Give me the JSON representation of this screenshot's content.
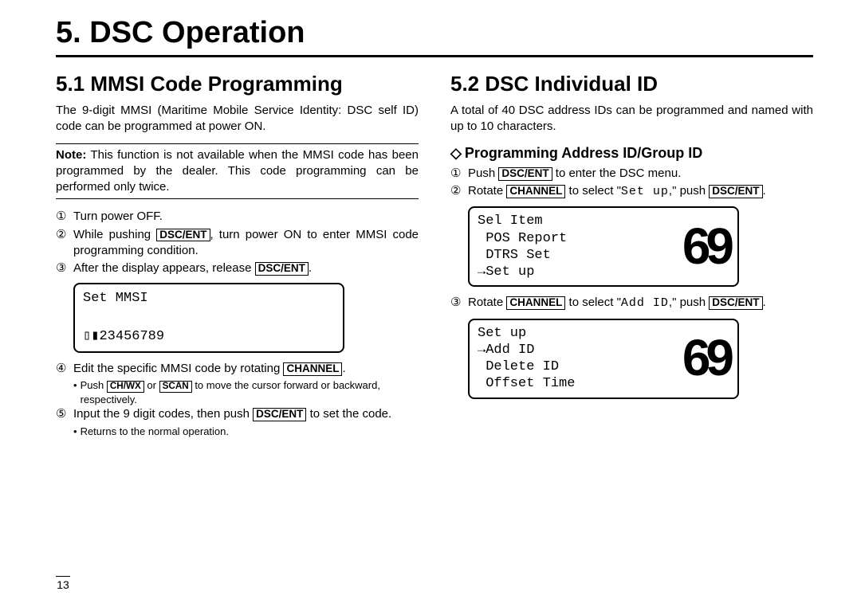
{
  "title": "5. DSC Operation",
  "pageNumber": "13",
  "buttons": {
    "dscEnt": "DSC/ENT",
    "channel": "CHANNEL",
    "chwx": "CH/WX",
    "scan": "SCAN"
  },
  "left": {
    "heading": "5.1 MMSI Code Programming",
    "intro": "The 9-digit MMSI (Maritime Mobile Service Identity: DSC self ID) code can be programmed at power ON.",
    "noteLabel": "Note:",
    "note": " This function is not available when the MMSI code has been programmed by the dealer. This code programming can be performed only twice.",
    "steps": {
      "s1": {
        "num": "①",
        "text": "Turn power OFF."
      },
      "s2": {
        "num": "②",
        "a": "While pushing ",
        "b": ", turn power ON to enter MMSI code programming condition."
      },
      "s3": {
        "num": "③",
        "a": "After the display appears, release ",
        "b": "."
      },
      "s4": {
        "num": "④",
        "a": "Edit the specific MMSI code by rotating ",
        "b": "."
      },
      "s4sub": {
        "a": "Push ",
        "b": " or ",
        "c": " to move the cursor forward or backward, respectively."
      },
      "s5": {
        "num": "⑤",
        "a": "Input the 9 digit codes, then push ",
        "b": " to set the code."
      },
      "s5sub": "Returns to the normal operation."
    },
    "lcd": {
      "line1": "Set MMSI",
      "line2": "",
      "line3": "▯▮23456789"
    }
  },
  "right": {
    "heading": "5.2 DSC Individual ID",
    "intro": "A total of 40 DSC address IDs can be programmed and named with up to 10 characters.",
    "subheading": "Programming Address ID/Group ID",
    "diamond": "◇",
    "steps": {
      "s1": {
        "num": "①",
        "a": "Push ",
        "b": " to enter the DSC menu."
      },
      "s2": {
        "num": "②",
        "a": "Rotate ",
        "b": " to select \"",
        "setup": "Set up",
        "c": ",\" push ",
        "d": "."
      },
      "s3": {
        "num": "③",
        "a": "Rotate ",
        "b": " to select \"",
        "addid": "Add ID",
        "c": ",\" push ",
        "d": "."
      }
    },
    "lcd1": {
      "text": "Sel Item\n POS Report\n DTRS Set\n→Set up",
      "big": "69"
    },
    "lcd2": {
      "text": "Set up\n→Add ID\n Delete ID\n Offset Time",
      "big": "69"
    }
  }
}
